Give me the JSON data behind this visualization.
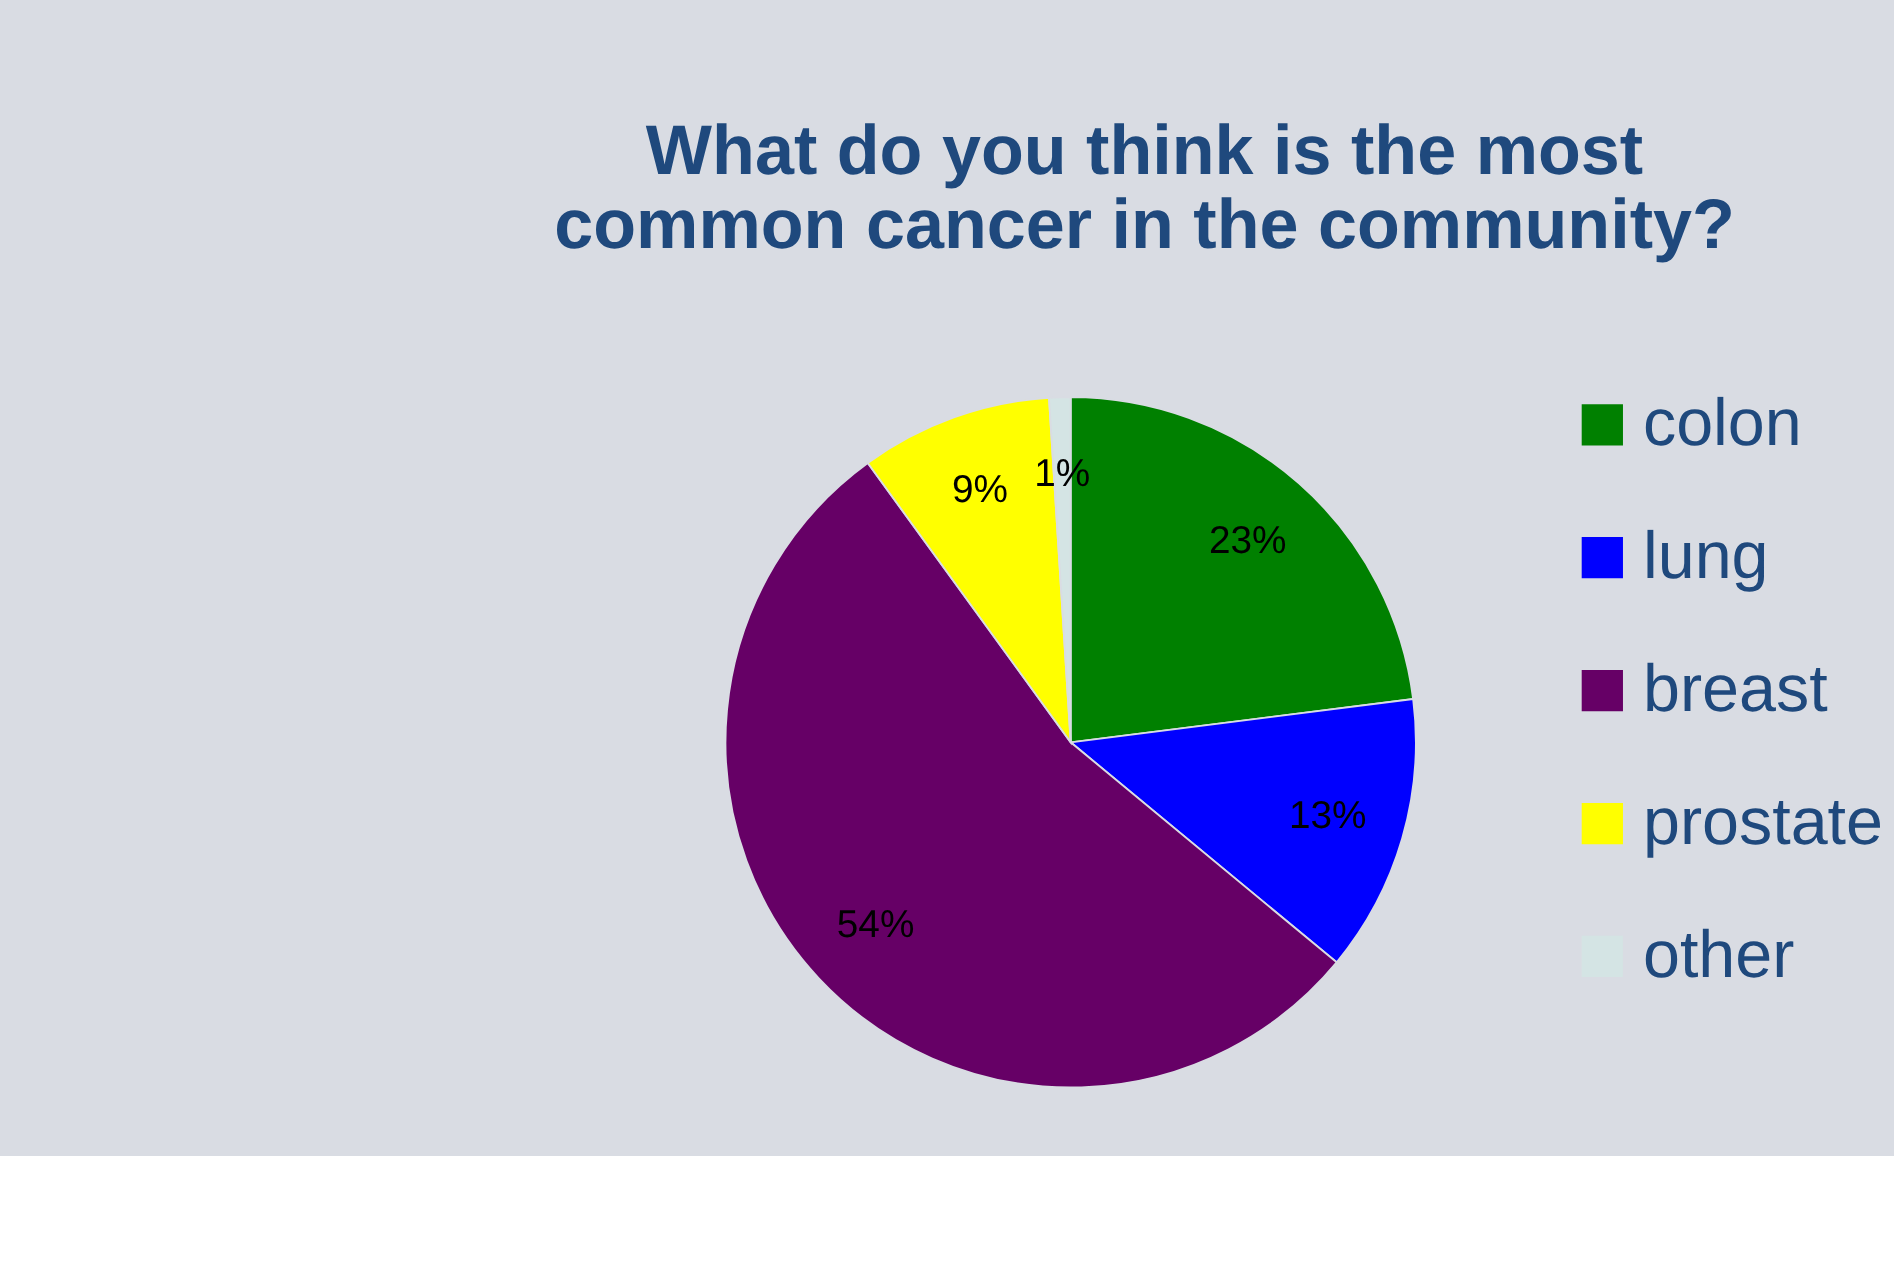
{
  "chart_data": {
    "type": "pie",
    "title": "What do you think is the most common cancer in the community?",
    "categories": [
      "colon",
      "lung",
      "breast",
      "prostate",
      "other"
    ],
    "values": [
      23,
      13,
      54,
      9,
      1
    ],
    "colors": [
      "#008000",
      "#0000ff",
      "#660066",
      "#ffff00",
      "#d4e4e4"
    ],
    "value_labels": [
      "23%",
      "13%",
      "54%",
      "9%",
      "1%"
    ],
    "legend": "right"
  }
}
